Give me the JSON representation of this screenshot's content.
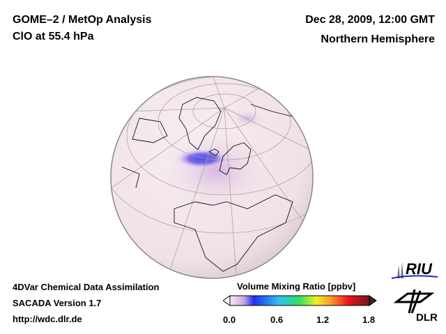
{
  "header": {
    "title": "GOME–2 / MetOp Analysis",
    "subtitle": "ClO at 55.4 hPa",
    "date": "Dec 28, 2009, 12:00 GMT",
    "region": "Northern Hemisphere"
  },
  "footer": {
    "line1": "4DVar Chemical Data Assimilation",
    "line2": "SACADA Version 1.7",
    "url": "http://wdc.dlr.de"
  },
  "colorbar": {
    "title": "Volume Mixing Ratio [ppbv]",
    "ticks": [
      "0.0",
      "0.6",
      "1.2",
      "1.8"
    ],
    "range": [
      0.0,
      1.8
    ]
  },
  "logos": {
    "riu": "RIU",
    "dlr": "DLR"
  }
}
